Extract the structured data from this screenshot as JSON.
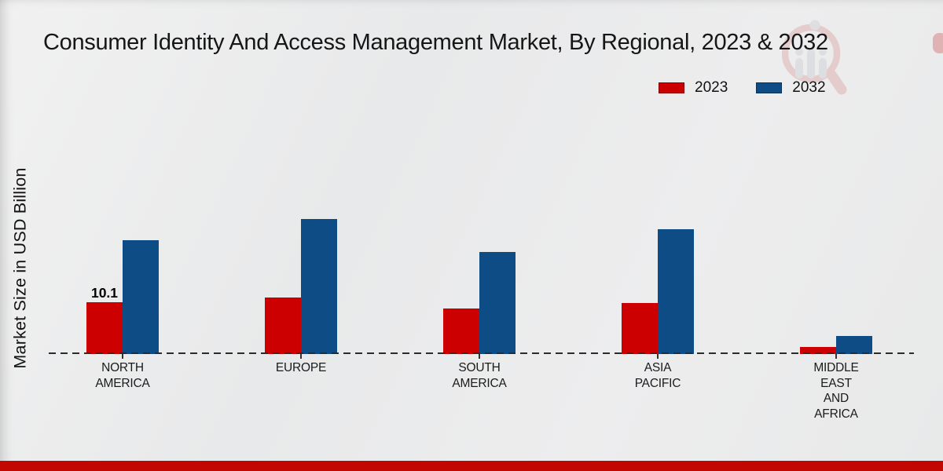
{
  "title": "Consumer Identity And Access Management Market, By Regional, 2023 & 2032",
  "ylabel": "Market Size in USD Billion",
  "legend": [
    {
      "label": "2023",
      "color": "#cc0000"
    },
    {
      "label": "2032",
      "color": "#0e4c86"
    }
  ],
  "colors": {
    "bar_2023": "#cc0000",
    "bar_2032": "#0e4c86",
    "footer_accent": "#c20601",
    "baseline": "#2b2b2b",
    "watermark_red": "#c2332e",
    "watermark_gray": "#9aa0a8"
  },
  "icons": {
    "watermark": "mrfr-magnifier-bar-chart-logo"
  },
  "chart_data": {
    "type": "bar",
    "title": "Consumer Identity And Access Management Market, By Regional, 2023 & 2032",
    "xlabel": "",
    "ylabel": "Market Size in USD Billion",
    "unit": "USD Billion",
    "grid": false,
    "legend_position": "top-right",
    "ylim": [
      0,
      30
    ],
    "categories": [
      "NORTH AMERICA",
      "EUROPE",
      "SOUTH AMERICA",
      "ASIA PACIFIC",
      "MIDDLE EAST AND AFRICA"
    ],
    "category_lines": [
      [
        "NORTH",
        "AMERICA"
      ],
      [
        "EUROPE"
      ],
      [
        "SOUTH",
        "AMERICA"
      ],
      [
        "ASIA",
        "PACIFIC"
      ],
      [
        "MIDDLE",
        "EAST",
        "AND",
        "AFRICA"
      ]
    ],
    "series": [
      {
        "name": "2023",
        "color": "#cc0000",
        "values": [
          10.1,
          11.0,
          8.9,
          10.0,
          1.4
        ]
      },
      {
        "name": "2032",
        "color": "#0e4c86",
        "values": [
          22.2,
          26.4,
          19.9,
          24.3,
          3.5
        ]
      }
    ],
    "bar_labels": [
      {
        "category_index": 0,
        "series_index": 0,
        "text": "10.1"
      }
    ]
  }
}
